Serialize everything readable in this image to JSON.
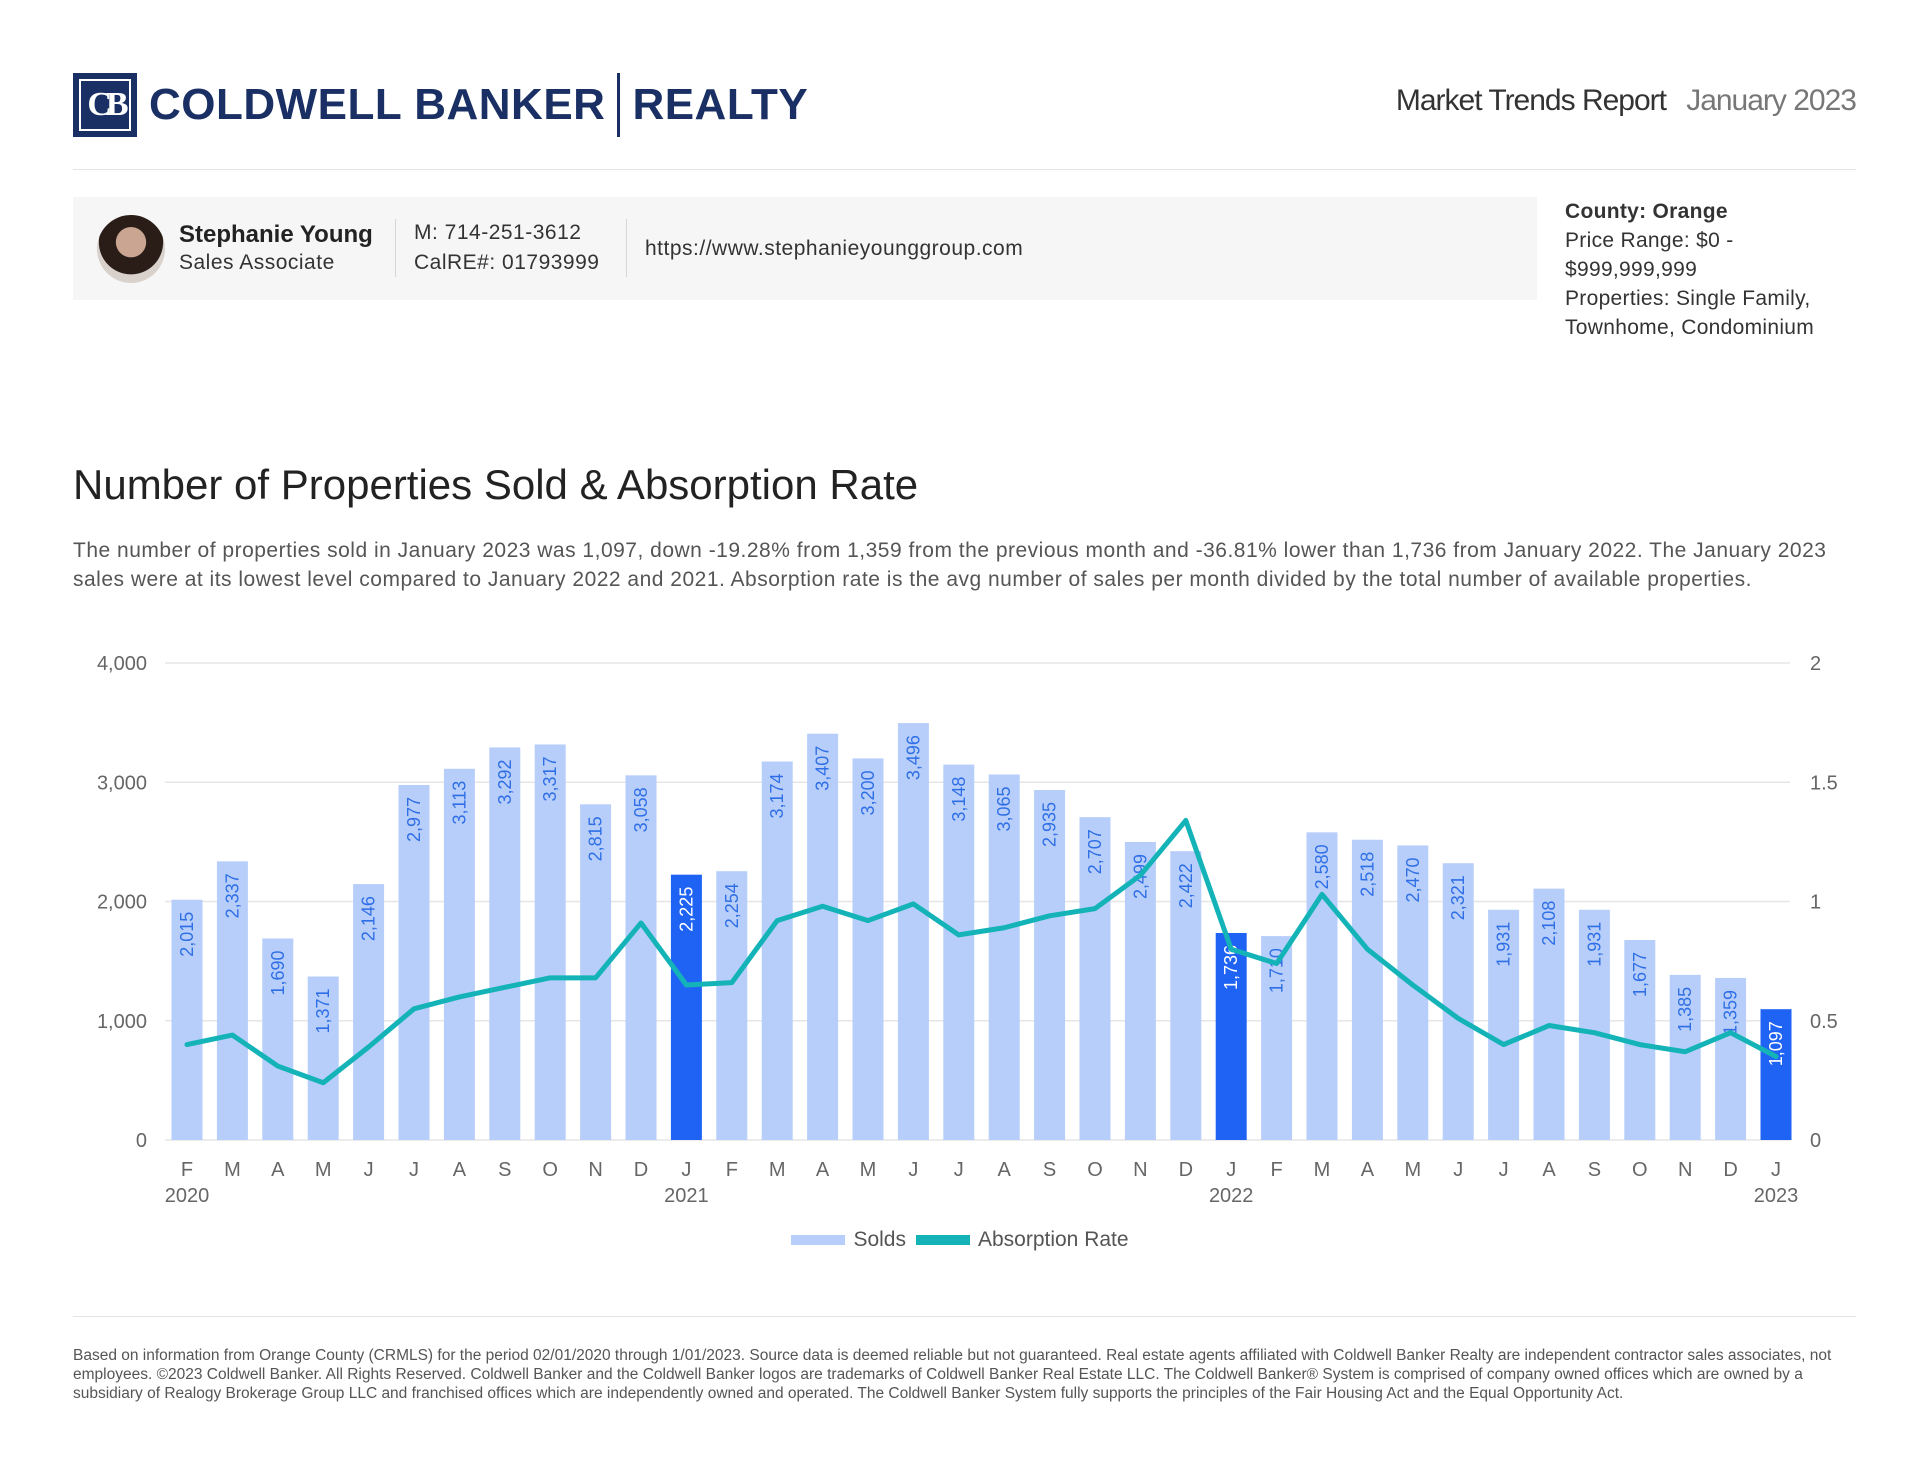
{
  "header": {
    "logo_text": "COLDWELL BANKER",
    "logo_text_2": "REALTY",
    "logo_monogram": "CB",
    "report_title": "Market Trends Report",
    "report_date": "January 2023"
  },
  "agent": {
    "name": "Stephanie Young",
    "role": "Sales Associate",
    "phone": "M: 714-251-3612",
    "license": "CalRE#: 01793999",
    "website": "https://www.stephanieyounggroup.com"
  },
  "filters": {
    "county": "County: Orange",
    "price_range": "Price Range: $0 - $999,999,999",
    "properties": "Properties: Single Family, Townhome, Condominium"
  },
  "section": {
    "title": "Number of Properties Sold & Absorption Rate",
    "summary": "The number of properties sold in January 2023 was 1,097, down -19.28% from 1,359 from the previous month and -36.81% lower than 1,736 from January 2022. The January 2023 sales were at its lowest level compared to January 2022 and 2021. Absorption rate is the avg number of sales per month divided by the total number of available properties."
  },
  "chart_data": {
    "type": "bar",
    "title": "Number of Properties Sold & Absorption Rate",
    "categories": [
      "F",
      "M",
      "A",
      "M",
      "J",
      "J",
      "A",
      "S",
      "O",
      "N",
      "D",
      "J",
      "F",
      "M",
      "A",
      "M",
      "J",
      "J",
      "A",
      "S",
      "O",
      "N",
      "D",
      "J",
      "F",
      "M",
      "A",
      "M",
      "J",
      "J",
      "A",
      "S",
      "O",
      "N",
      "D",
      "J"
    ],
    "year_labels": [
      {
        "index": 0,
        "label": "2020"
      },
      {
        "index": 11,
        "label": "2021"
      },
      {
        "index": 23,
        "label": "2022"
      },
      {
        "index": 35,
        "label": "2023"
      }
    ],
    "series": [
      {
        "name": "Solds",
        "type": "bar",
        "axis": "left",
        "values": [
          2015,
          2337,
          1690,
          1371,
          2146,
          2977,
          3113,
          3292,
          3317,
          2815,
          3058,
          2225,
          2254,
          3174,
          3407,
          3200,
          3496,
          3148,
          3065,
          2935,
          2707,
          2499,
          2422,
          1736,
          1710,
          2580,
          2518,
          2470,
          2321,
          1931,
          2108,
          1931,
          1677,
          1385,
          1359,
          1097
        ],
        "labels": [
          "2,015",
          "2,337",
          "1,690",
          "1,371",
          "2,146",
          "2,977",
          "3,113",
          "3,292",
          "3,317",
          "2,815",
          "3,058",
          "2,225",
          "2,254",
          "3,174",
          "3,407",
          "3,200",
          "3,496",
          "3,148",
          "3,065",
          "2,935",
          "2,707",
          "2,499",
          "2,422",
          "1,736",
          "1,710",
          "2,580",
          "2,518",
          "2,470",
          "2,321",
          "1,931",
          "2,108",
          "1,931",
          "1,677",
          "1,385",
          "1,359",
          "1,097"
        ],
        "highlight_indices": [
          11,
          23,
          35
        ]
      },
      {
        "name": "Absorption Rate",
        "type": "line",
        "axis": "right",
        "values": [
          0.4,
          0.44,
          0.31,
          0.24,
          0.39,
          0.55,
          0.6,
          0.64,
          0.68,
          0.68,
          0.91,
          0.65,
          0.66,
          0.92,
          0.98,
          0.92,
          0.99,
          0.86,
          0.89,
          0.94,
          0.97,
          1.11,
          1.34,
          0.8,
          0.74,
          1.03,
          0.8,
          0.65,
          0.51,
          0.4,
          0.48,
          0.45,
          0.4,
          0.37,
          0.45,
          0.35
        ]
      }
    ],
    "y_left": {
      "ylim": [
        0,
        4000
      ],
      "ticks": [
        "0",
        "1,000",
        "2,000",
        "3,000",
        "4,000"
      ]
    },
    "y_right": {
      "ylim": [
        0,
        2
      ],
      "ticks": [
        "0",
        "0.5",
        "1",
        "1.5",
        "2"
      ]
    },
    "grid": true,
    "legend_position": "bottom-center",
    "legend": [
      "Solds",
      "Absorption Rate"
    ],
    "colors": {
      "bar": "#b7cefa",
      "bar_highlight": "#1f63f5",
      "bar_label": "#2f6fe6",
      "bar_label_highlight": "#ffffff",
      "line": "#14b3b8",
      "grid": "#e6e6e6",
      "axis_text": "#666666"
    }
  },
  "footer": {
    "disclaimer": "Based on information from Orange County (CRMLS) for the period 02/01/2020 through 1/01/2023. Source data is deemed reliable but not guaranteed. Real estate agents affiliated with Coldwell Banker Realty are independent contractor sales associates, not employees. ©2023 Coldwell Banker. All Rights Reserved. Coldwell Banker and the Coldwell Banker logos are trademarks of Coldwell Banker Real Estate LLC. The Coldwell Banker® System is comprised of company owned offices which are owned by a subsidiary of Realogy Brokerage Group LLC and franchised offices which are independently owned and operated. The Coldwell Banker System fully supports the principles of the Fair Housing Act and the Equal Opportunity Act."
  }
}
